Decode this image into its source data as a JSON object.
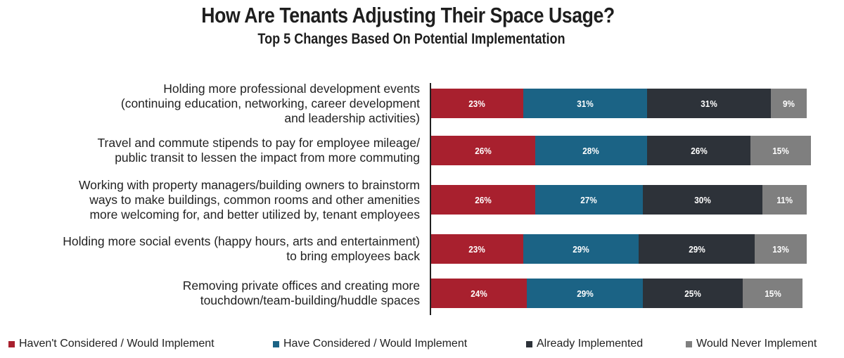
{
  "chart_data": {
    "type": "bar",
    "orientation": "horizontal",
    "stacked": true,
    "title": "How Are Tenants Adjusting Their Space Usage?",
    "subtitle": "Top 5 Changes Based On Potential Implementation",
    "categories": [
      [
        "Holding more professional development events",
        "(continuing education, networking, career development",
        "and leadership activities)"
      ],
      [
        "Travel and commute stipends to pay for employee mileage/",
        "public transit to lessen the impact from more commuting"
      ],
      [
        "Working with property managers/building owners to brainstorm",
        "ways to make buildings, common rooms and other amenities",
        "more welcoming for, and better utilized by, tenant employees"
      ],
      [
        "Holding more social events (happy hours, arts and entertainment)",
        "to bring employees back"
      ],
      [
        "Removing private offices and creating more",
        "touchdown/team-building/huddle spaces"
      ]
    ],
    "series": [
      {
        "name": "Haven't Considered / Would Implement",
        "color": "#a8202e",
        "values": [
          23,
          26,
          26,
          23,
          24
        ]
      },
      {
        "name": "Have Considered / Would Implement",
        "color": "#1b6385",
        "values": [
          31,
          28,
          27,
          29,
          29
        ]
      },
      {
        "name": "Already Implemented",
        "color": "#2d3239",
        "values": [
          31,
          26,
          30,
          29,
          25
        ]
      },
      {
        "name": "Would Never Implement",
        "color": "#7f7f7f",
        "values": [
          9,
          15,
          11,
          13,
          15
        ]
      }
    ],
    "value_suffix": "%",
    "legend_position": "bottom",
    "grid": false
  }
}
